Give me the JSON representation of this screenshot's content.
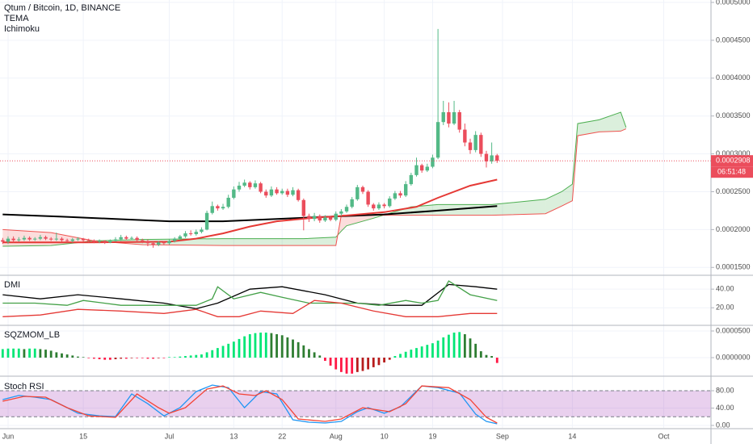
{
  "chart_data": [
    {
      "type": "candlestick",
      "title": "Qtum / Bitcoin, 1D, BINANCE",
      "indicators": [
        "TEMA",
        "Ichimoku"
      ],
      "countdown": "06:51:48",
      "up_color": "#53b987",
      "down_color": "#eb4d5c",
      "grid": true,
      "x": [
        -1,
        0,
        1,
        2,
        3,
        4,
        5,
        6,
        7,
        8,
        9,
        10,
        11,
        12,
        13,
        14,
        15,
        16,
        17,
        18,
        19,
        20,
        21,
        22,
        23,
        24,
        25,
        26,
        27,
        28,
        29,
        30,
        31,
        32,
        33,
        34,
        35,
        36,
        37,
        38,
        39,
        40,
        41,
        42,
        43,
        44,
        45,
        46,
        47,
        48,
        49,
        50,
        51,
        52,
        53,
        54,
        55,
        56,
        57,
        58,
        59,
        60,
        61,
        62,
        63,
        64,
        65,
        66,
        67,
        68,
        69,
        70,
        71,
        72,
        73,
        74,
        75,
        76,
        77,
        78,
        79,
        80,
        81,
        82,
        83,
        84,
        85,
        86,
        87,
        88,
        89,
        90,
        91
      ],
      "open": [
        0.000186,
        0.000184,
        0.000188,
        0.000186,
        0.000187,
        0.000189,
        0.000187,
        0.000188,
        0.00019,
        0.000188,
        0.000187,
        0.000188,
        0.000186,
        0.000185,
        0.000187,
        0.000188,
        0.000186,
        0.000185,
        0.000184,
        0.000185,
        0.000183,
        0.000185,
        0.000187,
        0.00019,
        0.000188,
        0.000189,
        0.000186,
        0.000185,
        0.000182,
        0.00018,
        0.000183,
        0.000182,
        0.000185,
        0.000188,
        0.000191,
        0.000195,
        0.000194,
        0.000197,
        0.0002,
        0.000222,
        0.000231,
        0.000228,
        0.00023,
        0.000242,
        0.000253,
        0.000258,
        0.000262,
        0.000256,
        0.000261,
        0.00025,
        0.000245,
        0.000253,
        0.000248,
        0.000251,
        0.000246,
        0.000252,
        0.000239,
        0.000218,
        0.000214,
        0.000218,
        0.000212,
        0.000216,
        0.000213,
        0.000221,
        0.000224,
        0.00023,
        0.00024,
        0.000256,
        0.00025,
        0.000233,
        0.000228,
        0.000233,
        0.000231,
        0.000241,
        0.000248,
        0.000245,
        0.00026,
        0.000272,
        0.000285,
        0.000278,
        0.000283,
        0.000295,
        0.000342,
        0.000355,
        0.00034,
        0.000355,
        0.000332,
        0.000315,
        0.000305,
        0.000325,
        0.0003,
        0.00029,
        0.000298
      ],
      "high": [
        0.000189,
        0.000191,
        0.000191,
        0.00019,
        0.000192,
        0.000191,
        0.00019,
        0.000193,
        0.000192,
        0.00019,
        0.000196,
        0.00019,
        0.000188,
        0.000189,
        0.00019,
        0.000189,
        0.000188,
        0.000187,
        0.000187,
        0.000186,
        0.000187,
        0.00019,
        0.000193,
        0.000192,
        0.000191,
        0.000191,
        0.000188,
        0.000187,
        0.000184,
        0.000185,
        0.000185,
        0.000187,
        0.00019,
        0.000193,
        0.000198,
        0.000199,
        0.0002,
        0.000203,
        0.000225,
        0.000237,
        0.000233,
        0.000234,
        0.000246,
        0.000257,
        0.000263,
        0.000266,
        0.000264,
        0.000265,
        0.000263,
        0.000253,
        0.000257,
        0.000256,
        0.000254,
        0.000254,
        0.000256,
        0.000254,
        0.000241,
        0.000221,
        0.000222,
        0.00022,
        0.000219,
        0.000218,
        0.000224,
        0.000227,
        0.000233,
        0.000243,
        0.000259,
        0.000258,
        0.000252,
        0.000235,
        0.000236,
        0.000235,
        0.000244,
        0.000251,
        0.000251,
        0.000264,
        0.000275,
        0.000295,
        0.000287,
        0.000287,
        0.000299,
        0.000465,
        0.00037,
        0.000368,
        0.00037,
        0.000358,
        0.00034,
        0.00032,
        0.00033,
        0.000328,
        0.000304,
        0.000315,
        0.0003
      ],
      "low": [
        0.000181,
        0.000181,
        0.000183,
        0.000184,
        0.000185,
        0.000185,
        0.000185,
        0.000186,
        0.000186,
        0.000185,
        0.000185,
        0.000184,
        0.000183,
        0.000183,
        0.000185,
        0.000184,
        0.000183,
        0.000182,
        0.000182,
        0.000181,
        0.000182,
        0.000184,
        0.000185,
        0.000186,
        0.000186,
        0.000184,
        0.000182,
        0.000178,
        0.000176,
        0.000178,
        0.00018,
        0.00018,
        0.000183,
        0.000186,
        0.000189,
        0.000192,
        0.000192,
        0.000195,
        0.000199,
        0.00022,
        0.000225,
        0.000226,
        0.000228,
        0.00024,
        0.00025,
        0.000256,
        0.000253,
        0.000254,
        0.000248,
        0.000242,
        0.000243,
        0.000246,
        0.000246,
        0.000243,
        0.000244,
        0.000237,
        0.000199,
        0.00021,
        0.000211,
        0.000209,
        0.00021,
        0.000211,
        0.000211,
        0.000218,
        0.000222,
        0.000228,
        0.000238,
        0.000247,
        0.00023,
        0.000225,
        0.000226,
        0.000228,
        0.000229,
        0.000239,
        0.000242,
        0.000243,
        0.000258,
        0.00027,
        0.000275,
        0.000276,
        0.000281,
        0.000293,
        0.000338,
        0.000335,
        0.000338,
        0.000328,
        0.00031,
        0.0003,
        0.000302,
        0.000296,
        0.000282,
        0.000287,
        0.000288
      ],
      "close": [
        0.000184,
        0.000188,
        0.000186,
        0.000187,
        0.000189,
        0.000187,
        0.000188,
        0.00019,
        0.000188,
        0.000187,
        0.000188,
        0.000186,
        0.000185,
        0.000187,
        0.000188,
        0.000186,
        0.000185,
        0.000184,
        0.000185,
        0.000183,
        0.000185,
        0.000187,
        0.00019,
        0.000188,
        0.000189,
        0.000186,
        0.000185,
        0.000182,
        0.00018,
        0.000183,
        0.000182,
        0.000185,
        0.000188,
        0.000191,
        0.000195,
        0.000194,
        0.000197,
        0.0002,
        0.000222,
        0.000231,
        0.000228,
        0.00023,
        0.000242,
        0.000253,
        0.000258,
        0.000262,
        0.000256,
        0.000261,
        0.00025,
        0.000245,
        0.000253,
        0.000248,
        0.000251,
        0.000246,
        0.000252,
        0.000239,
        0.000218,
        0.000214,
        0.000218,
        0.000212,
        0.000216,
        0.000213,
        0.000221,
        0.000224,
        0.00023,
        0.00024,
        0.000256,
        0.00025,
        0.000233,
        0.000228,
        0.000233,
        0.000231,
        0.000241,
        0.000248,
        0.000245,
        0.00026,
        0.000272,
        0.000285,
        0.000278,
        0.000283,
        0.000295,
        0.000342,
        0.000355,
        0.00034,
        0.000355,
        0.000332,
        0.000315,
        0.000305,
        0.000325,
        0.0003,
        0.00029,
        0.000298,
        0.0002908
      ],
      "lines": [
        {
          "color": "#000000",
          "x": [
            -1,
            10,
            20,
            30,
            40,
            50,
            60,
            70,
            80,
            91
          ],
          "values": [
            0.00022,
            0.000217,
            0.000214,
            0.000211,
            0.000211,
            0.000214,
            0.000217,
            0.00022,
            0.000225,
            0.000231
          ]
        },
        {
          "color": "#e53935",
          "x": [
            -1,
            15,
            30,
            35,
            40,
            45,
            50,
            56,
            62,
            70,
            76,
            80,
            86,
            91
          ],
          "values": [
            0.000183,
            0.000183,
            0.000184,
            0.000188,
            0.000195,
            0.000204,
            0.000211,
            0.000215,
            0.000218,
            0.000223,
            0.00023,
            0.000242,
            0.000258,
            0.000266
          ]
        }
      ],
      "cloud": {
        "x": [
          -1,
          8,
          16,
          25,
          40,
          55,
          61,
          62,
          63,
          68,
          75,
          80,
          90,
          100,
          103,
          105,
          106,
          110,
          114,
          115
        ],
        "span_a": [
          0.000178,
          0.000179,
          0.000185,
          0.000187,
          0.000188,
          0.000188,
          0.00019,
          0.000198,
          0.000205,
          0.000215,
          0.00023,
          0.000233,
          0.000233,
          0.00024,
          0.00025,
          0.00026,
          0.00034,
          0.000345,
          0.000355,
          0.000335
        ],
        "span_b": [
          0.0002,
          0.000196,
          0.000185,
          0.00018,
          0.000179,
          0.000179,
          0.000179,
          0.000219,
          0.000219,
          0.000219,
          0.000219,
          0.000219,
          0.000219,
          0.000221,
          0.000231,
          0.000238,
          0.000324,
          0.000329,
          0.00033,
          0.000333
        ],
        "colors": [
          "#4caf50",
          "#ef5350"
        ],
        "fill_colors": [
          "rgba(76,175,80,0.2)",
          "rgba(239,83,80,0.2)"
        ]
      },
      "ylim": [
        0.0001407,
        0.0005032
      ],
      "yticks": [
        {
          "value": 0.00015,
          "label": "0.0001500"
        },
        {
          "value": 0.0002,
          "label": "0.0002000"
        },
        {
          "value": 0.00025,
          "label": "0.0002500"
        },
        {
          "value": 0.0003,
          "label": "0.0003000"
        },
        {
          "value": 0.00035,
          "label": "0.0003500"
        },
        {
          "value": 0.0004,
          "label": "0.0004000"
        },
        {
          "value": 0.00045,
          "label": "0.0004500"
        },
        {
          "value": 0.0005,
          "label": "0.0005000"
        }
      ]
    },
    {
      "type": "line",
      "title": "DMI",
      "series": [
        {
          "color": "#000000",
          "x": [
            -1,
            6,
            13,
            21,
            29,
            35,
            39,
            45,
            51,
            59,
            65,
            71,
            77,
            82,
            87,
            91
          ],
          "values": [
            34,
            29.6,
            34,
            29.6,
            25,
            19,
            25,
            40,
            42.6,
            34,
            25,
            22.6,
            22.6,
            45,
            42.6,
            40
          ]
        },
        {
          "color": "#43a047",
          "x": [
            -1,
            5,
            11,
            14,
            21,
            29,
            35,
            38,
            39,
            42,
            47,
            51,
            56,
            62,
            65,
            69,
            74,
            77,
            80,
            82,
            86,
            91
          ],
          "values": [
            25,
            25,
            22.6,
            27.8,
            22.6,
            22.6,
            22.6,
            29.6,
            42.6,
            29.6,
            36.5,
            31.3,
            25,
            25,
            25,
            22.6,
            27.8,
            25,
            27.8,
            48.7,
            34,
            27.8
          ]
        },
        {
          "color": "#e53935",
          "x": [
            -1,
            6,
            13,
            21,
            29,
            35,
            39,
            43,
            47,
            53,
            57,
            62,
            68,
            74,
            80,
            86,
            91
          ],
          "values": [
            10.4,
            12.2,
            18.3,
            16.5,
            13.9,
            18.3,
            10.4,
            10.4,
            16.5,
            13.9,
            27.8,
            25,
            16.5,
            10.4,
            10.4,
            13.9,
            13.9
          ]
        }
      ],
      "ylim": [
        2,
        54
      ],
      "yticks": [
        {
          "value": 40,
          "label": "40.00"
        },
        {
          "value": 20,
          "label": "20.00"
        }
      ]
    },
    {
      "type": "histogram",
      "title": "SQZMOM_LB",
      "colors": [
        "#00e676",
        "#2e7d32",
        "#ff1744",
        "#b71c1c"
      ],
      "values": [
        1.6e-05,
        1.7e-05,
        1.7e-05,
        1.7e-05,
        1.6e-05,
        1.7e-05,
        1.7e-05,
        1.6e-05,
        1.5e-05,
        1.3e-05,
        1e-05,
        8e-06,
        6e-06,
        4e-06,
        2e-06,
        1e-06,
        -1e-06,
        -2e-06,
        -3e-06,
        -4e-06,
        -4e-06,
        -3e-06,
        -2e-06,
        -2e-06,
        -1e-06,
        -1e-06,
        -1e-06,
        -2e-06,
        -2e-06,
        -1e-06,
        -1e-06,
        1e-06,
        1e-06,
        2e-06,
        3e-06,
        4e-06,
        5e-06,
        6e-06,
        1e-05,
        1.4e-05,
        1.8e-05,
        2.2e-05,
        2.6e-05,
        3e-05,
        3.5e-05,
        4e-05,
        4.4e-05,
        4.6e-05,
        4.7e-05,
        4.7e-05,
        4.6e-05,
        4.4e-05,
        4.2e-05,
        3.8e-05,
        3.4e-05,
        2.9e-05,
        2.3e-05,
        1.6e-05,
        1e-05,
        4e-06,
        -6e-06,
        -1.5e-05,
        -2.2e-05,
        -2.7e-05,
        -3e-05,
        -3e-05,
        -2.7e-05,
        -2.5e-05,
        -2.2e-05,
        -1.8e-05,
        -1.4e-05,
        -9e-06,
        -4e-06,
        3e-06,
        7e-06,
        1.1e-05,
        1.5e-05,
        1.8e-05,
        2.1e-05,
        2.4e-05,
        2.7e-05,
        3.2e-05,
        3.8e-05,
        4.3e-05,
        4.7e-05,
        4.8e-05,
        4.4e-05,
        3.6e-05,
        2.6e-05,
        1.2e-05,
        5e-06,
        3e-06,
        -1e-05
      ],
      "ylim": [
        -3.33e-05,
        5.91e-05
      ],
      "yticks": [
        {
          "value": 5e-05,
          "label": "0.0000500"
        },
        {
          "value": 0,
          "label": "0.0000000"
        }
      ]
    },
    {
      "type": "line",
      "title": "Stoch RSI",
      "band": [
        20,
        80
      ],
      "band_color": "rgba(156,39,176,0.22)",
      "series": [
        {
          "color": "#2196f3",
          "x": [
            -1,
            2,
            5,
            8,
            11,
            13,
            17,
            20,
            23,
            26,
            29,
            32,
            35,
            38,
            41,
            44,
            47,
            50,
            53,
            56,
            59,
            62,
            65,
            67,
            70,
            73,
            77,
            80,
            84,
            87,
            89,
            91
          ],
          "values": [
            59.5,
            69,
            65,
            59.5,
            41,
            28,
            22,
            20.5,
            72.6,
            50,
            22,
            41,
            78,
            93,
            87,
            41,
            78,
            72.6,
            13,
            7.4,
            5.6,
            9.3,
            31.6,
            41,
            28,
            42.8,
            91,
            87,
            74.4,
            26,
            9.3,
            3.7
          ]
        },
        {
          "color": "#f44336",
          "x": [
            -1,
            3,
            7,
            11,
            15,
            20,
            24,
            28,
            30,
            33,
            37,
            40,
            43,
            46,
            48,
            51,
            54,
            59,
            62,
            66,
            71,
            74,
            77,
            82,
            86,
            89,
            91
          ],
          "values": [
            55.8,
            67,
            65,
            41,
            22,
            18.6,
            72.6,
            41,
            28,
            41,
            83.7,
            91,
            72.6,
            68.8,
            80,
            59.5,
            14.9,
            9.3,
            14.9,
            41,
            31.6,
            50,
            91,
            87,
            59.5,
            18.6,
            5.6
          ]
        }
      ],
      "ylim": [
        -5.6,
        111.6
      ],
      "yticks": [
        {
          "value": 80,
          "label": "80.00"
        },
        {
          "value": 40,
          "label": "40.00"
        },
        {
          "value": 0,
          "label": "0.00"
        }
      ],
      "xlim": [
        -1.5,
        130.8
      ],
      "xticks": [
        {
          "value": 0,
          "label": "Jun"
        },
        {
          "value": 14,
          "label": "15"
        },
        {
          "value": 30,
          "label": "Jul"
        },
        {
          "value": 42,
          "label": "13"
        },
        {
          "value": 51,
          "label": "22"
        },
        {
          "value": 61,
          "label": "Aug"
        },
        {
          "value": 70,
          "label": "10"
        },
        {
          "value": 79,
          "label": "19"
        },
        {
          "value": 92,
          "label": "Sep"
        },
        {
          "value": 105,
          "label": "14"
        },
        {
          "value": 122,
          "label": "Oct"
        }
      ]
    }
  ]
}
